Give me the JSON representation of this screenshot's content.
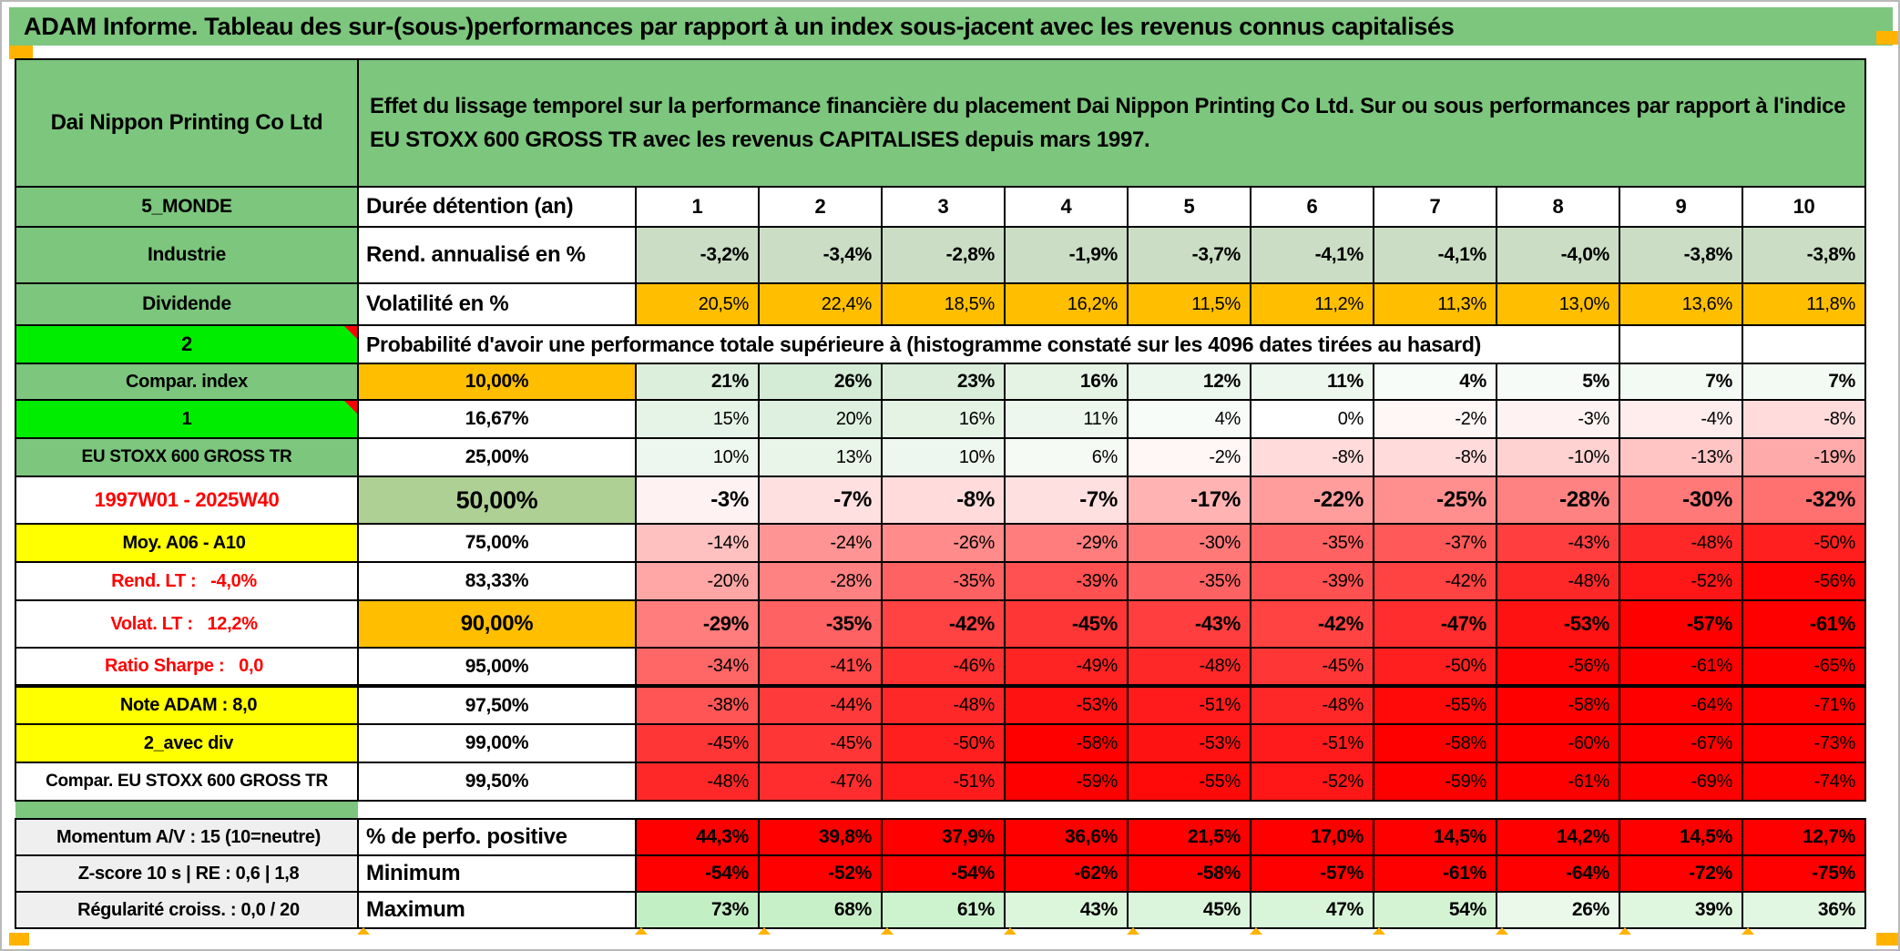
{
  "title": "ADAM Informe. Tableau des sur-(sous-)performances par rapport à un index sous-jacent avec les revenus connus capitalisés",
  "header": {
    "company": "Dai Nippon Printing Co Ltd",
    "description": "Effet du lissage temporel sur la performance financière du placement Dai Nippon Printing Co Ltd. Sur ou sous performances par rapport à l'indice EU STOXX 600 GROSS TR avec les revenus CAPITALISES depuis mars 1997."
  },
  "columns": [
    "1",
    "2",
    "3",
    "4",
    "5",
    "6",
    "7",
    "8",
    "9",
    "10"
  ],
  "top_rows": [
    {
      "label": "5_MONDE",
      "desc": "Durée détention (an)"
    },
    {
      "label": "Industrie",
      "desc": "Rend. annualisé en %",
      "values": [
        "-3,2%",
        "-3,4%",
        "-2,8%",
        "-1,9%",
        "-3,7%",
        "-4,1%",
        "-4,1%",
        "-4,0%",
        "-3,8%",
        "-3,8%"
      ]
    },
    {
      "label": "Dividende",
      "desc": "Volatilité en %",
      "values": [
        "20,5%",
        "22,4%",
        "18,5%",
        "16,2%",
        "11,5%",
        "11,2%",
        "11,3%",
        "13,0%",
        "13,6%",
        "11,8%"
      ]
    }
  ],
  "prob_header": {
    "label": "2",
    "text": "Probabilité d'avoir une performance totale supérieure à (histogramme constaté sur les 4096 dates tirées au hasard)"
  },
  "prob_rows": [
    {
      "label": "Compar. index",
      "style": "green",
      "pct": "10,00%",
      "pctStyle": "orange",
      "weight": "bold",
      "values": [
        21,
        26,
        23,
        16,
        12,
        11,
        4,
        5,
        7,
        7
      ]
    },
    {
      "label": "1",
      "style": "bright",
      "comment": true,
      "pct": "16,67%",
      "values": [
        15,
        20,
        16,
        11,
        4,
        0,
        -2,
        -3,
        -4,
        -8
      ]
    },
    {
      "label": "EU STOXX 600 GROSS TR",
      "style": "green small",
      "pct": "25,00%",
      "values": [
        10,
        13,
        10,
        6,
        -2,
        -8,
        -8,
        -10,
        -13,
        -19
      ]
    },
    {
      "label": "1997W01 - 2025W40",
      "style": "redtext",
      "pct": "50,00%",
      "pctStyle": "sage",
      "weight": "big",
      "values": [
        -3,
        -7,
        -8,
        -7,
        -17,
        -22,
        -25,
        -28,
        -30,
        -32
      ]
    },
    {
      "label": "Moy. A06 - A10",
      "style": "yellow right",
      "pct": "75,00%",
      "values": [
        -14,
        -24,
        -26,
        -29,
        -30,
        -35,
        -37,
        -43,
        -48,
        -50
      ]
    },
    {
      "label": "Rend. LT :   -4,0%",
      "style": "redtext right",
      "pct": "83,33%",
      "values": [
        -20,
        -28,
        -35,
        -39,
        -35,
        -39,
        -42,
        -48,
        -52,
        -56
      ]
    },
    {
      "label": "Volat. LT :   12,2%",
      "style": "redtext right",
      "pct": "90,00%",
      "pctStyle": "orange big",
      "weight": "bold90",
      "values": [
        -29,
        -35,
        -42,
        -45,
        -43,
        -42,
        -47,
        -53,
        -57,
        -61
      ]
    },
    {
      "label": "Ratio Sharpe :   0,0",
      "style": "redtext right",
      "pct": "95,00%",
      "values": [
        -34,
        -41,
        -46,
        -49,
        -48,
        -45,
        -50,
        -56,
        -61,
        -65
      ]
    },
    {
      "label": "Note ADAM : 8,0",
      "style": "yellow left",
      "pct": "97,50%",
      "thickTop": true,
      "values": [
        -38,
        -44,
        -48,
        -53,
        -51,
        -48,
        -55,
        -58,
        -64,
        -71
      ]
    },
    {
      "label": "2_avec div",
      "style": "yellow left",
      "pct": "99,00%",
      "values": [
        -45,
        -45,
        -50,
        -58,
        -53,
        -51,
        -58,
        -60,
        -67,
        -73
      ]
    },
    {
      "label": "Compar. EU STOXX 600 GROSS TR",
      "style": "plain small",
      "pct": "99,50%",
      "values": [
        -48,
        -47,
        -51,
        -59,
        -55,
        -52,
        -59,
        -61,
        -69,
        -74
      ]
    }
  ],
  "bottom_rows": [
    {
      "label": "Momentum A/V : 15 (10=neutre)",
      "desc": "% de perfo. positive",
      "cells": "red",
      "values": [
        "44,3%",
        "39,8%",
        "37,9%",
        "36,6%",
        "21,5%",
        "17,0%",
        "14,5%",
        "14,2%",
        "14,5%",
        "12,7%"
      ]
    },
    {
      "label": "Z-score 10 s | RE : 0,6 | 1,8",
      "desc": "Minimum",
      "cells": "red",
      "values": [
        "-54%",
        "-52%",
        "-54%",
        "-62%",
        "-58%",
        "-57%",
        "-61%",
        "-64%",
        "-72%",
        "-75%"
      ]
    },
    {
      "label": "Régularité croiss. : 0,0 / 20",
      "desc": "Maximum",
      "cells": "greenscale",
      "values": [
        73,
        68,
        61,
        43,
        45,
        47,
        54,
        26,
        39,
        36
      ]
    }
  ],
  "colors": {
    "green": "#7CC67D",
    "bright_green": "#00ED00",
    "sage": "#CBDEC5",
    "sage50": "#AFD095",
    "orange": "#FFBF00",
    "yellow": "#FFFF00",
    "gray": "#EFEFEF",
    "red": "#FF0000",
    "pos_end": "#D4EBD5",
    "max_end": "#C3EFC4",
    "marker_orange": "#FFB300"
  },
  "scales": {
    "pos_max": 26,
    "neg_max": 57,
    "green_max": 73
  }
}
